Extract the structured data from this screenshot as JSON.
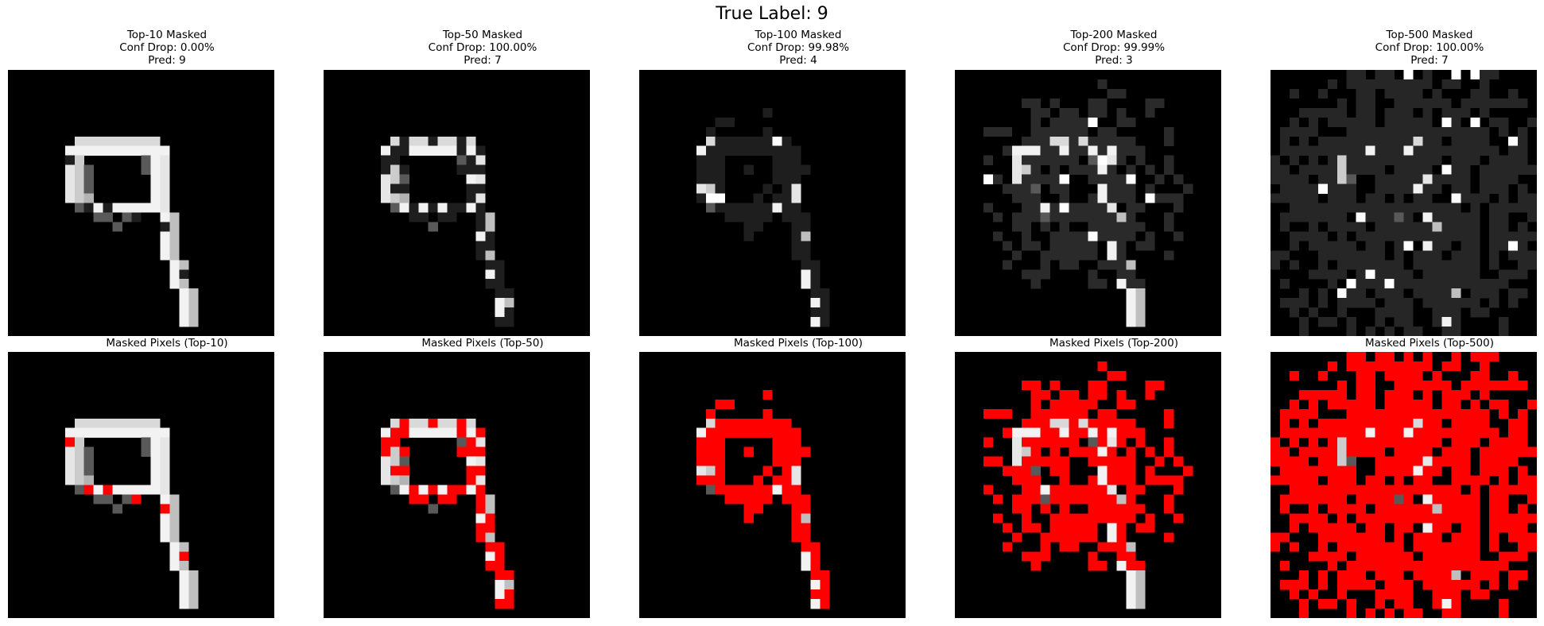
{
  "figure": {
    "suptitle": "True Label: 9"
  },
  "top_row": [
    {
      "title": "Top-10 Masked",
      "conf_drop": "Conf Drop: 0.00%",
      "pred": "Pred: 9"
    },
    {
      "title": "Top-50 Masked",
      "conf_drop": "Conf Drop: 100.00%",
      "pred": "Pred: 7"
    },
    {
      "title": "Top-100 Masked",
      "conf_drop": "Conf Drop: 99.98%",
      "pred": "Pred: 4"
    },
    {
      "title": "Top-200 Masked",
      "conf_drop": "Conf Drop: 99.99%",
      "pred": "Pred: 3"
    },
    {
      "title": "Top-500 Masked",
      "conf_drop": "Conf Drop: 100.00%",
      "pred": "Pred: 7"
    }
  ],
  "bottom_row": [
    {
      "title": "Masked Pixels (Top-10)"
    },
    {
      "title": "Masked Pixels (Top-50)"
    },
    {
      "title": "Masked Pixels (Top-100)"
    },
    {
      "title": "Masked Pixels (Top-200)"
    },
    {
      "title": "Masked Pixels (Top-500)"
    }
  ],
  "colors": {
    "background": "#000000",
    "digit": "#ffffff",
    "mask_overlay": "#ff0000",
    "masked_gray_top200": "#2a2a2a",
    "masked_gray_top500": "#262626"
  }
}
